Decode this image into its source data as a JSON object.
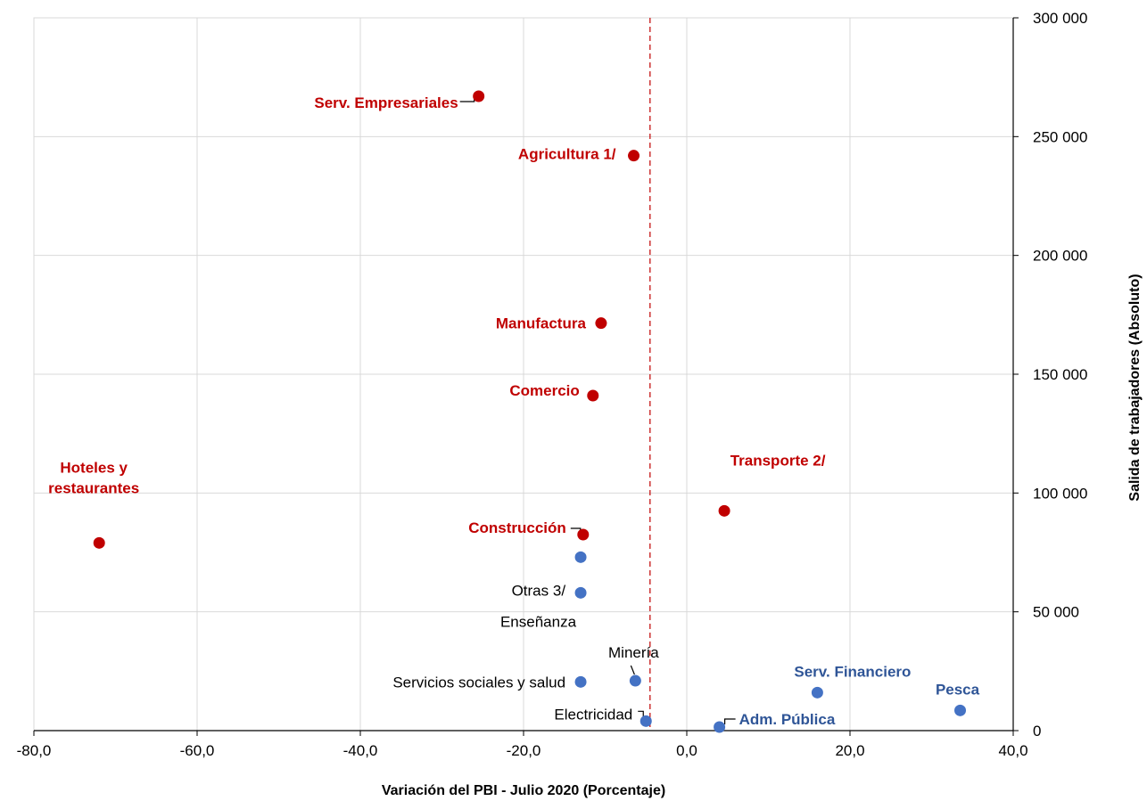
{
  "chart_data": {
    "type": "scatter",
    "title": "",
    "xlabel": "Variación del PBI - Julio 2020 (Porcentaje)",
    "ylabel": "Salida de trabajadores (Absoluto)",
    "xlim": [
      -80,
      40
    ],
    "ylim": [
      0,
      300000
    ],
    "x_ticks": [
      -80,
      -60,
      -40,
      -20,
      0,
      20,
      40
    ],
    "x_tick_labels": [
      "-80,0",
      "-60,0",
      "-40,0",
      "-20,0",
      "0,0",
      "20,0",
      "40,0"
    ],
    "y_ticks": [
      0,
      50000,
      100000,
      150000,
      200000,
      250000,
      300000
    ],
    "y_tick_labels": [
      "0",
      "50 000",
      "100 000",
      "150 000",
      "200 000",
      "250 000",
      "300 000"
    ],
    "grid": true,
    "y_axis_position": "right",
    "reference_line": {
      "x": -4.5,
      "style": "dashed",
      "color": "#c00000"
    },
    "colors": {
      "red": "#c00000",
      "blue": "#4472c4",
      "blue_label": "#2f5597",
      "black_label": "#000000"
    },
    "points": [
      {
        "label": "Serv. Empresariales",
        "x": -25.5,
        "y": 267000,
        "color": "red",
        "label_color": "red",
        "bold": true
      },
      {
        "label": "Agricultura 1/",
        "x": -6.5,
        "y": 242000,
        "color": "red",
        "label_color": "red",
        "bold": true
      },
      {
        "label": "Manufactura",
        "x": -10.5,
        "y": 171500,
        "color": "red",
        "label_color": "red",
        "bold": true
      },
      {
        "label": "Comercio",
        "x": -11.5,
        "y": 141000,
        "color": "red",
        "label_color": "red",
        "bold": true
      },
      {
        "label": [
          "Hoteles y",
          "restaurantes"
        ],
        "x": -72.0,
        "y": 79000,
        "color": "red",
        "label_color": "red",
        "bold": true
      },
      {
        "label": "Transporte 2/",
        "x": 4.6,
        "y": 92500,
        "color": "red",
        "label_color": "red",
        "bold": true
      },
      {
        "label": "Construcción",
        "x": -12.7,
        "y": 82500,
        "color": "red",
        "label_color": "red",
        "bold": true
      },
      {
        "label": "Otras 3/",
        "x": -13.0,
        "y": 73000,
        "color": "blue",
        "label_color": "black_label",
        "bold": false
      },
      {
        "label": "Enseñanza",
        "x": -13.0,
        "y": 58000,
        "color": "blue",
        "label_color": "black_label",
        "bold": false
      },
      {
        "label": "Servicios sociales y salud",
        "x": -13.0,
        "y": 20500,
        "color": "blue",
        "label_color": "black_label",
        "bold": false
      },
      {
        "label": "Minería",
        "x": -6.3,
        "y": 21000,
        "color": "blue",
        "label_color": "black_label",
        "bold": false
      },
      {
        "label": "Electricidad",
        "x": -5.0,
        "y": 4000,
        "color": "blue",
        "label_color": "black_label",
        "bold": false
      },
      {
        "label": "Adm. Pública",
        "x": 4.0,
        "y": 1500,
        "color": "blue",
        "label_color": "blue_label",
        "bold": true
      },
      {
        "label": "Serv. Financiero",
        "x": 16.0,
        "y": 16000,
        "color": "blue",
        "label_color": "blue_label",
        "bold": true
      },
      {
        "label": "Pesca",
        "x": 33.5,
        "y": 8500,
        "color": "blue",
        "label_color": "blue_label",
        "bold": true
      }
    ]
  }
}
